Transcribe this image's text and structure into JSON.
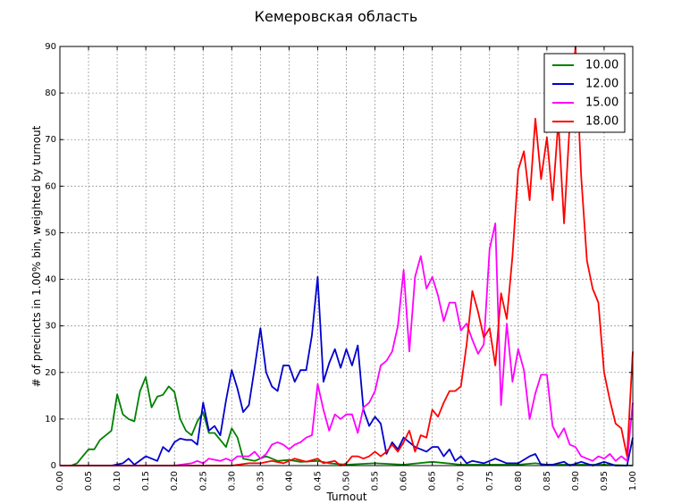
{
  "chart_data": {
    "type": "line",
    "title": "Кемеровская область",
    "xlabel": "Turnout",
    "ylabel": "# of precincts in 1.00% bin, weighted by turnout",
    "xlim": [
      0.0,
      1.0
    ],
    "ylim": [
      0,
      90
    ],
    "x_ticks": [
      "0.00",
      "0.05",
      "0.10",
      "0.15",
      "0.20",
      "0.25",
      "0.30",
      "0.35",
      "0.40",
      "0.45",
      "0.50",
      "0.55",
      "0.60",
      "0.65",
      "0.70",
      "0.75",
      "0.80",
      "0.85",
      "0.90",
      "0.95",
      "1.00"
    ],
    "y_ticks": [
      "0",
      "10",
      "20",
      "30",
      "40",
      "50",
      "60",
      "70",
      "80",
      "90"
    ],
    "grid": true,
    "legend_position": "top-right",
    "series": [
      {
        "name": "10.00",
        "color": "#008000",
        "points": [
          [
            0.0,
            0
          ],
          [
            0.02,
            0
          ],
          [
            0.03,
            0.5
          ],
          [
            0.04,
            2
          ],
          [
            0.05,
            3.5
          ],
          [
            0.06,
            3.5
          ],
          [
            0.07,
            5.5
          ],
          [
            0.09,
            7.5
          ],
          [
            0.1,
            15.3
          ],
          [
            0.11,
            11
          ],
          [
            0.12,
            10
          ],
          [
            0.13,
            9.5
          ],
          [
            0.14,
            16
          ],
          [
            0.15,
            19
          ],
          [
            0.16,
            12.5
          ],
          [
            0.17,
            14.8
          ],
          [
            0.18,
            15.2
          ],
          [
            0.19,
            17
          ],
          [
            0.2,
            15.8
          ],
          [
            0.21,
            10
          ],
          [
            0.22,
            7.5
          ],
          [
            0.23,
            6.5
          ],
          [
            0.24,
            9.5
          ],
          [
            0.25,
            11.5
          ],
          [
            0.26,
            7
          ],
          [
            0.27,
            7
          ],
          [
            0.28,
            5.5
          ],
          [
            0.29,
            4
          ],
          [
            0.3,
            8
          ],
          [
            0.31,
            6
          ],
          [
            0.32,
            1.5
          ],
          [
            0.34,
            1
          ],
          [
            0.36,
            2
          ],
          [
            0.38,
            1
          ],
          [
            0.4,
            1.2
          ],
          [
            0.42,
            0.8
          ],
          [
            0.45,
            1
          ],
          [
            0.47,
            0.5
          ],
          [
            0.5,
            0.2
          ],
          [
            0.55,
            0.5
          ],
          [
            0.6,
            0.2
          ],
          [
            0.65,
            0.8
          ],
          [
            0.7,
            0.2
          ],
          [
            0.75,
            0.2
          ],
          [
            0.8,
            0.2
          ],
          [
            0.83,
            0.5
          ],
          [
            0.85,
            0.2
          ],
          [
            0.9,
            0.2
          ],
          [
            0.95,
            0.2
          ],
          [
            1.0,
            0
          ]
        ]
      },
      {
        "name": "12.00",
        "color": "#0000cc",
        "points": [
          [
            0.0,
            0
          ],
          [
            0.09,
            0
          ],
          [
            0.11,
            0.5
          ],
          [
            0.12,
            1.5
          ],
          [
            0.13,
            0.2
          ],
          [
            0.15,
            2
          ],
          [
            0.16,
            1.5
          ],
          [
            0.17,
            1
          ],
          [
            0.18,
            4
          ],
          [
            0.19,
            3
          ],
          [
            0.2,
            5
          ],
          [
            0.21,
            5.8
          ],
          [
            0.22,
            5.5
          ],
          [
            0.23,
            5.5
          ],
          [
            0.24,
            4.5
          ],
          [
            0.25,
            13.5
          ],
          [
            0.26,
            7.5
          ],
          [
            0.27,
            8.5
          ],
          [
            0.28,
            6.5
          ],
          [
            0.29,
            14
          ],
          [
            0.3,
            20.5
          ],
          [
            0.31,
            16.5
          ],
          [
            0.32,
            11.5
          ],
          [
            0.33,
            13
          ],
          [
            0.34,
            21
          ],
          [
            0.35,
            29.5
          ],
          [
            0.36,
            20
          ],
          [
            0.37,
            17
          ],
          [
            0.38,
            16
          ],
          [
            0.39,
            21.5
          ],
          [
            0.4,
            21.5
          ],
          [
            0.41,
            18
          ],
          [
            0.42,
            20.5
          ],
          [
            0.43,
            20.5
          ],
          [
            0.44,
            28
          ],
          [
            0.45,
            40.5
          ],
          [
            0.46,
            18
          ],
          [
            0.47,
            22
          ],
          [
            0.48,
            25
          ],
          [
            0.49,
            21
          ],
          [
            0.5,
            25
          ],
          [
            0.51,
            21.5
          ],
          [
            0.52,
            25.8
          ],
          [
            0.53,
            12
          ],
          [
            0.54,
            8.5
          ],
          [
            0.55,
            10.5
          ],
          [
            0.56,
            9
          ],
          [
            0.57,
            2.5
          ],
          [
            0.58,
            5
          ],
          [
            0.59,
            3.5
          ],
          [
            0.6,
            6
          ],
          [
            0.61,
            5
          ],
          [
            0.62,
            4
          ],
          [
            0.63,
            3.5
          ],
          [
            0.64,
            3
          ],
          [
            0.65,
            4
          ],
          [
            0.66,
            4
          ],
          [
            0.67,
            2
          ],
          [
            0.68,
            3.5
          ],
          [
            0.69,
            1
          ],
          [
            0.7,
            2
          ],
          [
            0.71,
            0.5
          ],
          [
            0.72,
            1
          ],
          [
            0.74,
            0.5
          ],
          [
            0.76,
            1.5
          ],
          [
            0.78,
            0.5
          ],
          [
            0.8,
            0.5
          ],
          [
            0.82,
            2
          ],
          [
            0.83,
            2.5
          ],
          [
            0.84,
            0.2
          ],
          [
            0.86,
            0.2
          ],
          [
            0.88,
            0.8
          ],
          [
            0.89,
            0
          ],
          [
            0.91,
            0.8
          ],
          [
            0.93,
            0
          ],
          [
            0.95,
            0.8
          ],
          [
            0.97,
            0
          ],
          [
            0.99,
            0
          ],
          [
            1.0,
            6
          ]
        ]
      },
      {
        "name": "15.00",
        "color": "#ff00ff",
        "points": [
          [
            0.0,
            0
          ],
          [
            0.2,
            0
          ],
          [
            0.23,
            0.5
          ],
          [
            0.24,
            1
          ],
          [
            0.25,
            0.5
          ],
          [
            0.26,
            1.5
          ],
          [
            0.28,
            1
          ],
          [
            0.29,
            1.5
          ],
          [
            0.3,
            1
          ],
          [
            0.31,
            2
          ],
          [
            0.33,
            2
          ],
          [
            0.34,
            3
          ],
          [
            0.35,
            1.5
          ],
          [
            0.36,
            2.5
          ],
          [
            0.37,
            4.5
          ],
          [
            0.38,
            5
          ],
          [
            0.39,
            4.5
          ],
          [
            0.4,
            3.5
          ],
          [
            0.41,
            4.5
          ],
          [
            0.42,
            5
          ],
          [
            0.43,
            6
          ],
          [
            0.44,
            6.5
          ],
          [
            0.45,
            17.5
          ],
          [
            0.46,
            12
          ],
          [
            0.47,
            7.5
          ],
          [
            0.48,
            11
          ],
          [
            0.49,
            10
          ],
          [
            0.5,
            11
          ],
          [
            0.51,
            11
          ],
          [
            0.52,
            7
          ],
          [
            0.53,
            12.5
          ],
          [
            0.54,
            13.5
          ],
          [
            0.55,
            16
          ],
          [
            0.56,
            21.5
          ],
          [
            0.57,
            22.5
          ],
          [
            0.58,
            24.5
          ],
          [
            0.59,
            30
          ],
          [
            0.6,
            42
          ],
          [
            0.61,
            24.5
          ],
          [
            0.62,
            40.5
          ],
          [
            0.63,
            45
          ],
          [
            0.64,
            38
          ],
          [
            0.65,
            40.5
          ],
          [
            0.66,
            36.5
          ],
          [
            0.67,
            31
          ],
          [
            0.68,
            35
          ],
          [
            0.69,
            35
          ],
          [
            0.7,
            29
          ],
          [
            0.71,
            30.5
          ],
          [
            0.72,
            27
          ],
          [
            0.73,
            24
          ],
          [
            0.74,
            26
          ],
          [
            0.75,
            46.5
          ],
          [
            0.76,
            52
          ],
          [
            0.77,
            13
          ],
          [
            0.78,
            30.5
          ],
          [
            0.79,
            18
          ],
          [
            0.8,
            25
          ],
          [
            0.81,
            20.5
          ],
          [
            0.82,
            10
          ],
          [
            0.83,
            15.5
          ],
          [
            0.84,
            19.5
          ],
          [
            0.85,
            19.5
          ],
          [
            0.86,
            8.5
          ],
          [
            0.87,
            6
          ],
          [
            0.88,
            8
          ],
          [
            0.89,
            4.5
          ],
          [
            0.9,
            4
          ],
          [
            0.91,
            2
          ],
          [
            0.92,
            1.5
          ],
          [
            0.93,
            1
          ],
          [
            0.94,
            2
          ],
          [
            0.95,
            1.5
          ],
          [
            0.96,
            2.5
          ],
          [
            0.97,
            1
          ],
          [
            0.98,
            2
          ],
          [
            0.99,
            1
          ],
          [
            1.0,
            13.5
          ]
        ]
      },
      {
        "name": "18.00",
        "color": "#ff0000",
        "points": [
          [
            0.0,
            0
          ],
          [
            0.3,
            0
          ],
          [
            0.33,
            0.5
          ],
          [
            0.35,
            0.5
          ],
          [
            0.37,
            1
          ],
          [
            0.39,
            0.5
          ],
          [
            0.41,
            1.5
          ],
          [
            0.43,
            0.8
          ],
          [
            0.45,
            1.5
          ],
          [
            0.46,
            0.5
          ],
          [
            0.48,
            1
          ],
          [
            0.49,
            0
          ],
          [
            0.5,
            0.5
          ],
          [
            0.51,
            2
          ],
          [
            0.52,
            2
          ],
          [
            0.53,
            1.5
          ],
          [
            0.54,
            2
          ],
          [
            0.55,
            3
          ],
          [
            0.56,
            2
          ],
          [
            0.57,
            3
          ],
          [
            0.58,
            4.5
          ],
          [
            0.59,
            3
          ],
          [
            0.6,
            5
          ],
          [
            0.61,
            7.5
          ],
          [
            0.62,
            3
          ],
          [
            0.63,
            6.5
          ],
          [
            0.64,
            6
          ],
          [
            0.65,
            12
          ],
          [
            0.66,
            10.5
          ],
          [
            0.67,
            13.5
          ],
          [
            0.68,
            16
          ],
          [
            0.69,
            16
          ],
          [
            0.7,
            17
          ],
          [
            0.71,
            26
          ],
          [
            0.72,
            37.5
          ],
          [
            0.73,
            33
          ],
          [
            0.74,
            27.5
          ],
          [
            0.75,
            29.5
          ],
          [
            0.76,
            21.5
          ],
          [
            0.77,
            37
          ],
          [
            0.78,
            31.5
          ],
          [
            0.79,
            45
          ],
          [
            0.8,
            63.5
          ],
          [
            0.81,
            67.5
          ],
          [
            0.82,
            57
          ],
          [
            0.83,
            74.5
          ],
          [
            0.84,
            61.5
          ],
          [
            0.85,
            70.5
          ],
          [
            0.86,
            57
          ],
          [
            0.87,
            74
          ],
          [
            0.88,
            52
          ],
          [
            0.89,
            73.5
          ],
          [
            0.9,
            90
          ],
          [
            0.91,
            62
          ],
          [
            0.92,
            44
          ],
          [
            0.93,
            38
          ],
          [
            0.94,
            35
          ],
          [
            0.95,
            20
          ],
          [
            0.96,
            14
          ],
          [
            0.97,
            9
          ],
          [
            0.98,
            8
          ],
          [
            0.99,
            2
          ],
          [
            1.0,
            24.5
          ]
        ]
      }
    ]
  }
}
